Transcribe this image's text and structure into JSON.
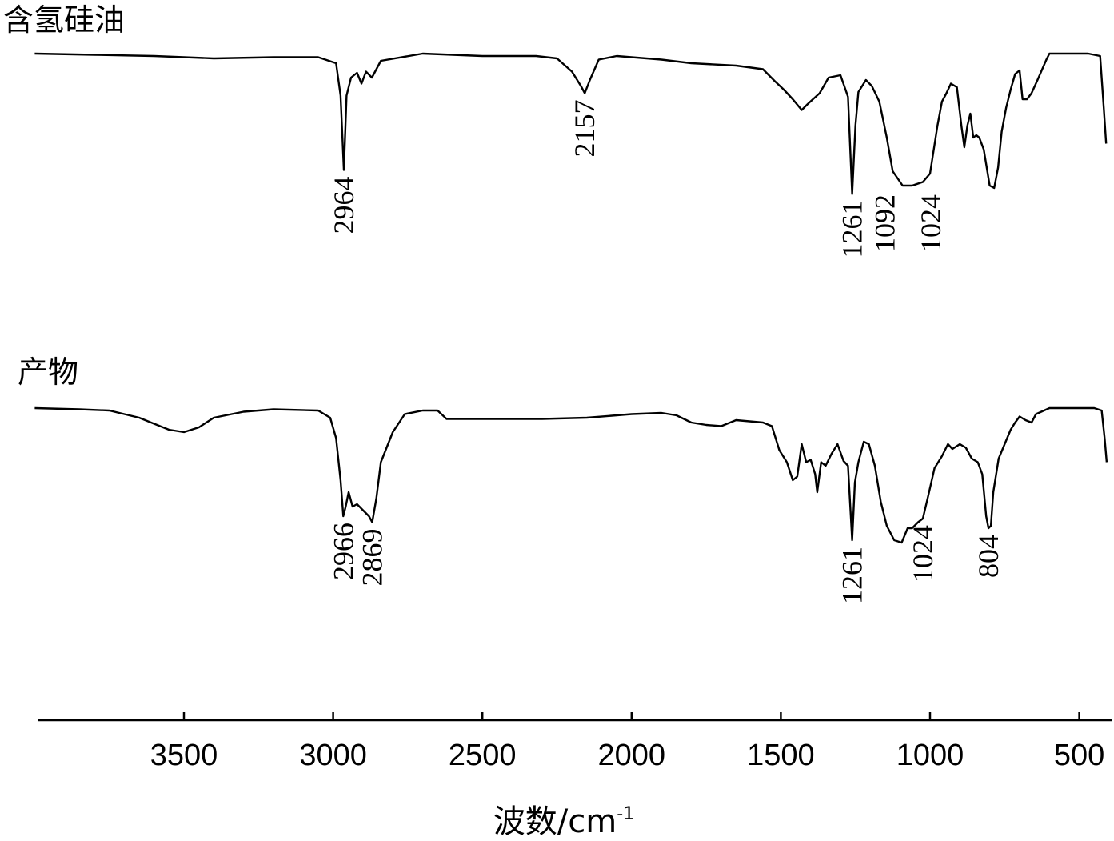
{
  "chart_data": {
    "type": "line",
    "title": "",
    "xlabel": "波数/cm",
    "xlabel_superscript": "-1",
    "ylabel": "",
    "xlim": [
      4000,
      400
    ],
    "x_reversed": true,
    "xticks": [
      3500,
      3000,
      2500,
      2000,
      1500,
      1000,
      500
    ],
    "grid": false,
    "legend": "none",
    "series": [
      {
        "name": "含氢硅油",
        "points": [
          [
            4000,
            0.0
          ],
          [
            3800,
            0.01
          ],
          [
            3600,
            0.02
          ],
          [
            3400,
            0.04
          ],
          [
            3200,
            0.03
          ],
          [
            3050,
            0.03
          ],
          [
            2990,
            0.08
          ],
          [
            2975,
            0.35
          ],
          [
            2964,
            0.97
          ],
          [
            2955,
            0.35
          ],
          [
            2940,
            0.2
          ],
          [
            2920,
            0.16
          ],
          [
            2905,
            0.25
          ],
          [
            2890,
            0.15
          ],
          [
            2870,
            0.2
          ],
          [
            2840,
            0.06
          ],
          [
            2700,
            0.0
          ],
          [
            2500,
            0.02
          ],
          [
            2320,
            0.02
          ],
          [
            2250,
            0.04
          ],
          [
            2200,
            0.15
          ],
          [
            2170,
            0.27
          ],
          [
            2157,
            0.33
          ],
          [
            2140,
            0.22
          ],
          [
            2110,
            0.05
          ],
          [
            2050,
            0.02
          ],
          [
            1900,
            0.05
          ],
          [
            1800,
            0.08
          ],
          [
            1650,
            0.1
          ],
          [
            1560,
            0.13
          ],
          [
            1520,
            0.23
          ],
          [
            1490,
            0.3
          ],
          [
            1460,
            0.38
          ],
          [
            1430,
            0.47
          ],
          [
            1410,
            0.42
          ],
          [
            1370,
            0.33
          ],
          [
            1340,
            0.2
          ],
          [
            1300,
            0.18
          ],
          [
            1275,
            0.36
          ],
          [
            1261,
            1.17
          ],
          [
            1250,
            0.6
          ],
          [
            1240,
            0.32
          ],
          [
            1215,
            0.22
          ],
          [
            1195,
            0.27
          ],
          [
            1170,
            0.4
          ],
          [
            1145,
            0.7
          ],
          [
            1125,
            0.98
          ],
          [
            1092,
            1.1
          ],
          [
            1060,
            1.1
          ],
          [
            1024,
            1.07
          ],
          [
            1000,
            1.0
          ],
          [
            975,
            0.6
          ],
          [
            960,
            0.4
          ],
          [
            945,
            0.33
          ],
          [
            930,
            0.25
          ],
          [
            910,
            0.28
          ],
          [
            895,
            0.6
          ],
          [
            885,
            0.78
          ],
          [
            875,
            0.6
          ],
          [
            865,
            0.5
          ],
          [
            855,
            0.7
          ],
          [
            845,
            0.68
          ],
          [
            835,
            0.7
          ],
          [
            820,
            0.8
          ],
          [
            800,
            1.1
          ],
          [
            785,
            1.12
          ],
          [
            772,
            0.95
          ],
          [
            760,
            0.65
          ],
          [
            745,
            0.45
          ],
          [
            730,
            0.3
          ],
          [
            715,
            0.17
          ],
          [
            700,
            0.14
          ],
          [
            690,
            0.38
          ],
          [
            675,
            0.38
          ],
          [
            660,
            0.33
          ],
          [
            640,
            0.22
          ],
          [
            610,
            0.05
          ],
          [
            600,
            0.0
          ],
          [
            540,
            0.0
          ],
          [
            470,
            0.0
          ],
          [
            430,
            0.02
          ],
          [
            418,
            0.45
          ],
          [
            410,
            0.75
          ]
        ]
      },
      {
        "name": "产物",
        "points": [
          [
            4000,
            0.0
          ],
          [
            3850,
            0.01
          ],
          [
            3750,
            0.02
          ],
          [
            3650,
            0.08
          ],
          [
            3550,
            0.18
          ],
          [
            3500,
            0.2
          ],
          [
            3450,
            0.16
          ],
          [
            3400,
            0.08
          ],
          [
            3300,
            0.03
          ],
          [
            3200,
            0.01
          ],
          [
            3050,
            0.02
          ],
          [
            3010,
            0.08
          ],
          [
            2990,
            0.25
          ],
          [
            2975,
            0.6
          ],
          [
            2966,
            0.9
          ],
          [
            2958,
            0.82
          ],
          [
            2948,
            0.7
          ],
          [
            2935,
            0.82
          ],
          [
            2920,
            0.8
          ],
          [
            2900,
            0.85
          ],
          [
            2880,
            0.9
          ],
          [
            2869,
            0.95
          ],
          [
            2855,
            0.75
          ],
          [
            2840,
            0.45
          ],
          [
            2800,
            0.2
          ],
          [
            2760,
            0.05
          ],
          [
            2700,
            0.02
          ],
          [
            2650,
            0.02
          ],
          [
            2620,
            0.09
          ],
          [
            2500,
            0.09
          ],
          [
            2300,
            0.09
          ],
          [
            2150,
            0.08
          ],
          [
            2000,
            0.05
          ],
          [
            1900,
            0.04
          ],
          [
            1850,
            0.06
          ],
          [
            1800,
            0.12
          ],
          [
            1750,
            0.14
          ],
          [
            1700,
            0.15
          ],
          [
            1650,
            0.1
          ],
          [
            1560,
            0.12
          ],
          [
            1530,
            0.15
          ],
          [
            1505,
            0.35
          ],
          [
            1480,
            0.45
          ],
          [
            1460,
            0.6
          ],
          [
            1445,
            0.57
          ],
          [
            1430,
            0.3
          ],
          [
            1415,
            0.45
          ],
          [
            1400,
            0.43
          ],
          [
            1385,
            0.55
          ],
          [
            1378,
            0.7
          ],
          [
            1365,
            0.45
          ],
          [
            1350,
            0.48
          ],
          [
            1330,
            0.38
          ],
          [
            1310,
            0.3
          ],
          [
            1290,
            0.44
          ],
          [
            1275,
            0.48
          ],
          [
            1261,
            1.1
          ],
          [
            1252,
            0.62
          ],
          [
            1240,
            0.45
          ],
          [
            1222,
            0.28
          ],
          [
            1205,
            0.3
          ],
          [
            1185,
            0.48
          ],
          [
            1165,
            0.78
          ],
          [
            1145,
            0.98
          ],
          [
            1120,
            1.1
          ],
          [
            1095,
            1.12
          ],
          [
            1075,
            1.0
          ],
          [
            1060,
            1.0
          ],
          [
            1040,
            0.95
          ],
          [
            1024,
            0.92
          ],
          [
            1005,
            0.72
          ],
          [
            985,
            0.5
          ],
          [
            960,
            0.4
          ],
          [
            940,
            0.3
          ],
          [
            925,
            0.34
          ],
          [
            900,
            0.3
          ],
          [
            880,
            0.33
          ],
          [
            860,
            0.42
          ],
          [
            840,
            0.45
          ],
          [
            825,
            0.55
          ],
          [
            812,
            0.9
          ],
          [
            804,
            1.0
          ],
          [
            796,
            0.98
          ],
          [
            788,
            0.7
          ],
          [
            770,
            0.42
          ],
          [
            750,
            0.3
          ],
          [
            730,
            0.18
          ],
          [
            715,
            0.12
          ],
          [
            700,
            0.07
          ],
          [
            680,
            0.1
          ],
          [
            660,
            0.12
          ],
          [
            645,
            0.05
          ],
          [
            600,
            0.0
          ],
          [
            450,
            0.0
          ],
          [
            425,
            0.02
          ],
          [
            415,
            0.25
          ],
          [
            408,
            0.45
          ]
        ]
      }
    ],
    "annotations": [
      {
        "series": "含氢硅油",
        "x": 2964,
        "text": "2964"
      },
      {
        "series": "含氢硅油",
        "x": 2157,
        "text": "2157"
      },
      {
        "series": "含氢硅油",
        "x": 1261,
        "text": "1261"
      },
      {
        "series": "含氢硅油",
        "x": 1092,
        "text": "1092"
      },
      {
        "series": "含氢硅油",
        "x": 1024,
        "text": "1024"
      },
      {
        "series": "产物",
        "x": 2966,
        "text": "2966"
      },
      {
        "series": "产物",
        "x": 2869,
        "text": "2869"
      },
      {
        "series": "产物",
        "x": 1261,
        "text": "1261"
      },
      {
        "series": "产物",
        "x": 1024,
        "text": "1024"
      },
      {
        "series": "产物",
        "x": 804,
        "text": "804"
      }
    ]
  }
}
